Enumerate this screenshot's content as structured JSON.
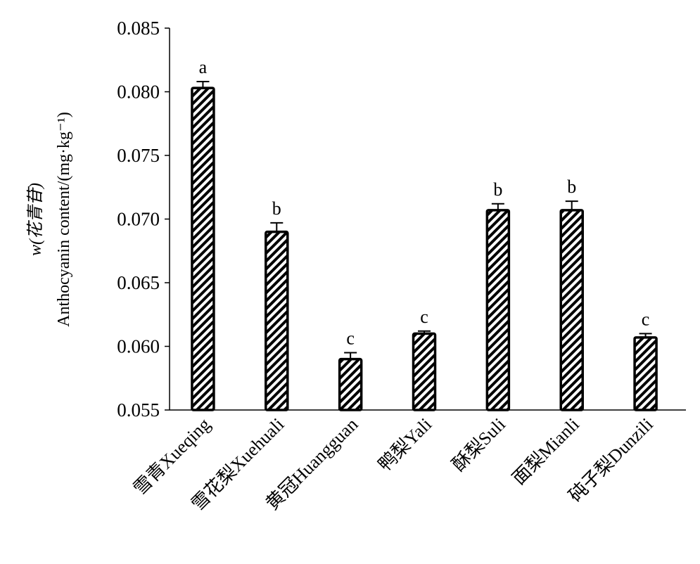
{
  "chart_data": {
    "type": "bar",
    "title": "",
    "xlabel": "",
    "ylabel_line1": "w(花青苷)",
    "ylabel_line2": "Anthocyanin content/(mg·kg⁻¹)",
    "ylim": [
      0.055,
      0.085
    ],
    "yticks": [
      "0.055",
      "0.060",
      "0.065",
      "0.070",
      "0.075",
      "0.080",
      "0.085"
    ],
    "categories": [
      "雪青Xueqing",
      "雪花梨Xuehuali",
      "黄冠Huangguan",
      "鸭梨Yali",
      "酥梨Suli",
      "面梨Mianli",
      "砘子梨Dunzili"
    ],
    "values": [
      0.0803,
      0.069,
      0.059,
      0.061,
      0.0707,
      0.0707,
      0.0607
    ],
    "errors": [
      0.0005,
      0.0007,
      0.0005,
      0.0002,
      0.0005,
      0.0007,
      0.0003
    ],
    "letters": [
      "a",
      "b",
      "c",
      "c",
      "b",
      "b",
      "c"
    ],
    "grid": false,
    "bar_pattern": "diagonal-hatch",
    "colors": {
      "bar_fill": "#ffffff",
      "bar_stroke": "#000000",
      "hatch": "#000000"
    }
  }
}
